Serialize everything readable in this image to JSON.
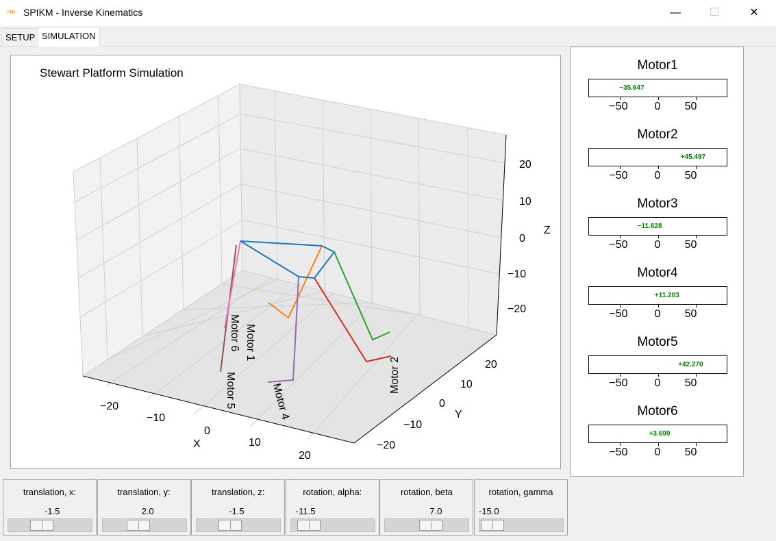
{
  "window": {
    "title": "SPIKM - Inverse Kinematics",
    "minimize": "—",
    "maximize": "☐",
    "close": "✕",
    "icon_text": "≡lb"
  },
  "tabs": [
    {
      "label": "SETUP"
    },
    {
      "label": "SIMULATION"
    }
  ],
  "plot": {
    "title": "Stewart Platform Simulation",
    "xlabel": "X",
    "ylabel": "Y",
    "zlabel": "Z",
    "x_ticks": [
      "−20",
      "−10",
      "0",
      "10",
      "20"
    ],
    "y_ticks": [
      "−20",
      "−10",
      "0",
      "10",
      "20"
    ],
    "z_ticks": [
      "20",
      "10",
      "0",
      "−10",
      "−20"
    ],
    "motor_labels": [
      "Motor 1",
      "Motor 2",
      "Motor 4",
      "Motor 5",
      "Motor 6"
    ],
    "leg_colors": [
      "#ff7f0e",
      "#2ca02c",
      "#d62728",
      "#9467bd",
      "#8c564b",
      "#e377c2"
    ],
    "platform_color": "#1f77b4"
  },
  "motors": [
    {
      "name": "Motor1",
      "value": -35.647,
      "label": "−35.647"
    },
    {
      "name": "Motor2",
      "value": 45.497,
      "label": "+45.497"
    },
    {
      "name": "Motor3",
      "value": -11.628,
      "label": "−11.628"
    },
    {
      "name": "Motor4",
      "value": 11.203,
      "label": "+11.203"
    },
    {
      "name": "Motor5",
      "value": 42.27,
      "label": "+42.270"
    },
    {
      "name": "Motor6",
      "value": 3.699,
      "label": "+3.699"
    }
  ],
  "motor_axis_ticks": [
    "−50",
    "0",
    "50"
  ],
  "sliders": [
    {
      "label": "translation, x:",
      "value": "-1.5"
    },
    {
      "label": "translation, y:",
      "value": "2.0"
    },
    {
      "label": "translation, z:",
      "value": "-1.5"
    },
    {
      "label": "rotation, alpha:",
      "value": "-11.5"
    },
    {
      "label": "rotation, beta",
      "value": "7.0"
    },
    {
      "label": "rotation, gamma",
      "value": "-15.0"
    }
  ]
}
